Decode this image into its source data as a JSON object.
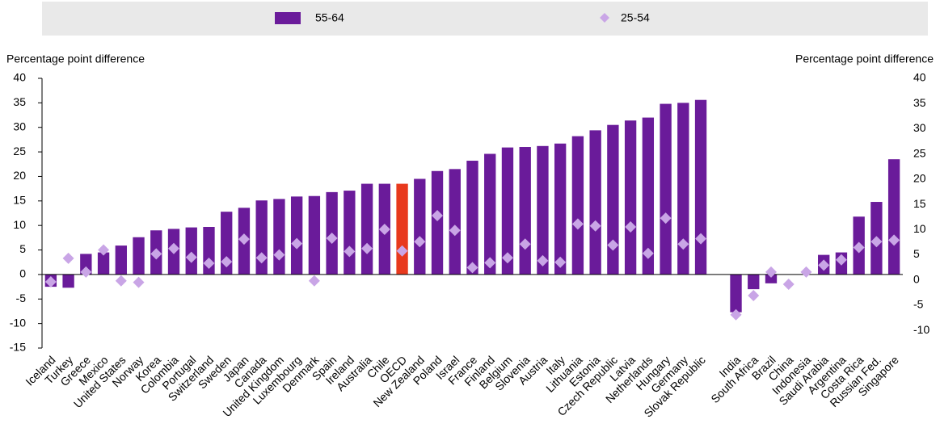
{
  "chart_data": {
    "type": "bar",
    "ylabel": "Percentage point difference",
    "y2label": "Percentage point difference",
    "categories": [
      "Iceland",
      "Turkey",
      "Greece",
      "Mexico",
      "United States",
      "Norway",
      "Korea",
      "Colombia",
      "Portugal",
      "Switzerland",
      "Sweden",
      "Japan",
      "Canada",
      "United Kingdom",
      "Luxembourg",
      "Denmark",
      "Spain",
      "Ireland",
      "Australia",
      "Chile",
      "OECD",
      "New Zealand",
      "Poland",
      "Israel",
      "France",
      "Finland",
      "Belgium",
      "Slovenia",
      "Austria",
      "Italy",
      "Lithuania",
      "Estonia",
      "Czech Republic",
      "Latvia",
      "Netherlands",
      "Hungary",
      "Germany",
      "Slovak Republic",
      null,
      "India",
      "South Africa",
      "Brazil",
      "China",
      "Indonesia",
      "Saudi Arabia",
      "Argentina",
      "Costa Rica",
      "Russian Fed.",
      "Singapore"
    ],
    "series": [
      {
        "name": "55-64",
        "color": "#6a1b9a",
        "mark": "bar",
        "values": [
          -2.5,
          -2.7,
          4.2,
          4.5,
          5.9,
          7.6,
          9,
          9.3,
          9.6,
          9.7,
          12.8,
          13.6,
          15.1,
          15.4,
          15.9,
          16,
          16.8,
          17.1,
          18.5,
          18.5,
          18.5,
          19.5,
          21.1,
          21.5,
          23.2,
          24.6,
          25.9,
          26,
          26.2,
          26.7,
          28.2,
          29.4,
          30.5,
          31.4,
          32,
          34.8,
          35,
          35.6,
          null,
          -7.7,
          -3,
          -1.8,
          null,
          null,
          4,
          4.5,
          11.8,
          14.8,
          23.5
        ]
      },
      {
        "name": "25-54",
        "color": "#c9a5e6",
        "mark": "diamond",
        "values": [
          -1.5,
          3.3,
          0.5,
          5,
          -1.3,
          -1.6,
          4.2,
          5.3,
          3.5,
          2.3,
          2.6,
          7.2,
          3.4,
          4,
          6.3,
          -1.3,
          7.4,
          4.7,
          5.3,
          9.2,
          4.8,
          6.7,
          12,
          9,
          1.4,
          2.4,
          3.4,
          6.2,
          2.8,
          2.5,
          10.3,
          9.9,
          6,
          9.7,
          4.3,
          11.5,
          6.2,
          7.3,
          null,
          -8.2,
          -4.3,
          0.5,
          -2,
          0.5,
          1.9,
          3,
          5.5,
          6.7,
          7
        ]
      }
    ],
    "highlight": {
      "index": 20,
      "color": "#e8391d"
    },
    "ylim": [
      -15,
      40
    ],
    "yticks": [
      -15,
      -10,
      -5,
      0,
      5,
      10,
      15,
      20,
      25,
      30,
      35,
      40
    ],
    "y2lim": [
      -13.5,
      40
    ],
    "y2ticks": [
      -10,
      -5,
      0,
      5,
      10,
      15,
      20,
      25,
      30,
      35,
      40
    ],
    "legend": "top",
    "grid": false
  }
}
